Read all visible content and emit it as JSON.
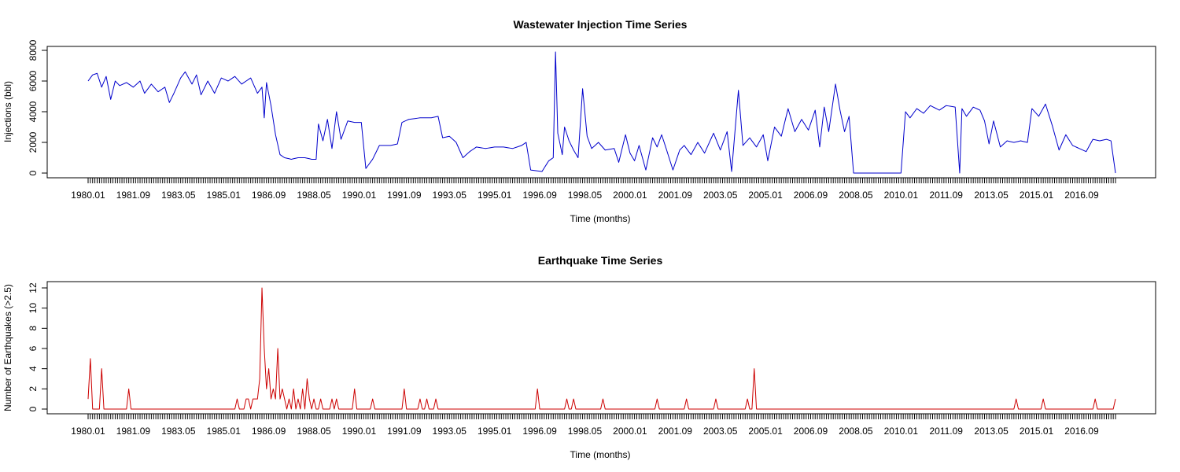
{
  "chart_data": [
    {
      "type": "line",
      "title": "Wastewater Injection Time Series",
      "xlabel": "Time (months)",
      "ylabel": "Injections (bbl)",
      "ylim": [
        0,
        8000
      ],
      "y_ticks": [
        0,
        2000,
        4000,
        6000,
        8000
      ],
      "x_tick_labels": [
        "1980.01",
        "1981.09",
        "1983.05",
        "1985.01",
        "1986.09",
        "1988.05",
        "1990.01",
        "1991.09",
        "1993.05",
        "1995.01",
        "1996.09",
        "1998.05",
        "2000.01",
        "2001.09",
        "2003.05",
        "2005.01",
        "2006.09",
        "2008.05",
        "2010.01",
        "2011.09",
        "2013.05",
        "2015.01",
        "2016.09"
      ],
      "grid": false,
      "color": "#0000cc",
      "x_start": "1980.01",
      "x_end": "2017.12",
      "series_keypoints": [
        [
          "1980.01",
          6000
        ],
        [
          "1980.03",
          6400
        ],
        [
          "1980.05",
          6500
        ],
        [
          "1980.07",
          5600
        ],
        [
          "1980.09",
          6300
        ],
        [
          "1980.11",
          4800
        ],
        [
          "1981.01",
          6000
        ],
        [
          "1981.03",
          5700
        ],
        [
          "1981.06",
          5900
        ],
        [
          "1981.09",
          5600
        ],
        [
          "1981.12",
          6000
        ],
        [
          "1982.02",
          5200
        ],
        [
          "1982.05",
          5800
        ],
        [
          "1982.08",
          5300
        ],
        [
          "1982.11",
          5600
        ],
        [
          "1983.01",
          4600
        ],
        [
          "1983.03",
          5200
        ],
        [
          "1983.06",
          6200
        ],
        [
          "1983.08",
          6600
        ],
        [
          "1983.11",
          5800
        ],
        [
          "1984.01",
          6400
        ],
        [
          "1984.03",
          5100
        ],
        [
          "1984.06",
          6000
        ],
        [
          "1984.09",
          5200
        ],
        [
          "1984.12",
          6200
        ],
        [
          "1985.03",
          6000
        ],
        [
          "1985.06",
          6300
        ],
        [
          "1985.09",
          5800
        ],
        [
          "1986.01",
          6200
        ],
        [
          "1986.04",
          5200
        ],
        [
          "1986.06",
          5600
        ],
        [
          "1986.07",
          3600
        ],
        [
          "1986.08",
          5900
        ],
        [
          "1986.10",
          4400
        ],
        [
          "1986.12",
          2500
        ],
        [
          "1987.02",
          1200
        ],
        [
          "1987.04",
          1000
        ],
        [
          "1987.07",
          900
        ],
        [
          "1987.10",
          1000
        ],
        [
          "1988.01",
          1000
        ],
        [
          "1988.04",
          900
        ],
        [
          "1988.06",
          900
        ],
        [
          "1988.07",
          3200
        ],
        [
          "1988.09",
          2100
        ],
        [
          "1988.11",
          3500
        ],
        [
          "1989.01",
          1600
        ],
        [
          "1989.03",
          4000
        ],
        [
          "1989.05",
          2200
        ],
        [
          "1989.08",
          3400
        ],
        [
          "1989.11",
          3300
        ],
        [
          "1990.02",
          3300
        ],
        [
          "1990.04",
          300
        ],
        [
          "1990.07",
          900
        ],
        [
          "1990.10",
          1800
        ],
        [
          "1991.03",
          1800
        ],
        [
          "1991.06",
          1900
        ],
        [
          "1991.08",
          3300
        ],
        [
          "1991.11",
          3500
        ],
        [
          "1992.04",
          3600
        ],
        [
          "1992.09",
          3600
        ],
        [
          "1992.12",
          3700
        ],
        [
          "1993.02",
          2300
        ],
        [
          "1993.05",
          2400
        ],
        [
          "1993.08",
          2000
        ],
        [
          "1993.11",
          1000
        ],
        [
          "1994.02",
          1400
        ],
        [
          "1994.05",
          1700
        ],
        [
          "1994.09",
          1600
        ],
        [
          "1995.01",
          1700
        ],
        [
          "1995.05",
          1700
        ],
        [
          "1995.09",
          1600
        ],
        [
          "1996.01",
          1800
        ],
        [
          "1996.03",
          2000
        ],
        [
          "1996.05",
          200
        ],
        [
          "1996.10",
          100
        ],
        [
          "1997.01",
          800
        ],
        [
          "1997.03",
          1000
        ],
        [
          "1997.04",
          7900
        ],
        [
          "1997.05",
          2600
        ],
        [
          "1997.07",
          1200
        ],
        [
          "1997.08",
          3000
        ],
        [
          "1997.10",
          2100
        ],
        [
          "1997.12",
          1500
        ],
        [
          "1998.02",
          1000
        ],
        [
          "1998.04",
          5500
        ],
        [
          "1998.06",
          2400
        ],
        [
          "1998.08",
          1600
        ],
        [
          "1998.11",
          2000
        ],
        [
          "1999.02",
          1500
        ],
        [
          "1999.06",
          1600
        ],
        [
          "1999.08",
          700
        ],
        [
          "1999.11",
          2500
        ],
        [
          "2000.01",
          1300
        ],
        [
          "2000.03",
          800
        ],
        [
          "2000.05",
          1800
        ],
        [
          "2000.08",
          200
        ],
        [
          "2000.11",
          2300
        ],
        [
          "2001.01",
          1700
        ],
        [
          "2001.03",
          2500
        ],
        [
          "2001.05",
          1600
        ],
        [
          "2001.08",
          200
        ],
        [
          "2001.11",
          1500
        ],
        [
          "2002.01",
          1800
        ],
        [
          "2002.04",
          1200
        ],
        [
          "2002.07",
          2000
        ],
        [
          "2002.10",
          1300
        ],
        [
          "2003.02",
          2600
        ],
        [
          "2003.05",
          1500
        ],
        [
          "2003.08",
          2700
        ],
        [
          "2003.10",
          100
        ],
        [
          "2004.01",
          5400
        ],
        [
          "2004.03",
          1800
        ],
        [
          "2004.06",
          2300
        ],
        [
          "2004.09",
          1700
        ],
        [
          "2004.12",
          2500
        ],
        [
          "2005.02",
          800
        ],
        [
          "2005.05",
          3000
        ],
        [
          "2005.08",
          2400
        ],
        [
          "2005.11",
          4200
        ],
        [
          "2006.02",
          2700
        ],
        [
          "2006.05",
          3500
        ],
        [
          "2006.08",
          2800
        ],
        [
          "2006.11",
          4100
        ],
        [
          "2007.01",
          1700
        ],
        [
          "2007.03",
          4300
        ],
        [
          "2007.05",
          2700
        ],
        [
          "2007.08",
          5800
        ],
        [
          "2007.10",
          4100
        ],
        [
          "2007.12",
          2700
        ],
        [
          "2008.02",
          3700
        ],
        [
          "2008.04",
          0
        ],
        [
          "2008.09",
          0
        ],
        [
          "2009.06",
          0
        ],
        [
          "2010.01",
          0
        ],
        [
          "2010.03",
          4000
        ],
        [
          "2010.05",
          3600
        ],
        [
          "2010.08",
          4200
        ],
        [
          "2010.11",
          3900
        ],
        [
          "2011.02",
          4400
        ],
        [
          "2011.06",
          4100
        ],
        [
          "2011.09",
          4400
        ],
        [
          "2012.01",
          4300
        ],
        [
          "2012.03",
          0
        ],
        [
          "2012.04",
          4200
        ],
        [
          "2012.06",
          3700
        ],
        [
          "2012.09",
          4300
        ],
        [
          "2012.12",
          4100
        ],
        [
          "2013.02",
          3400
        ],
        [
          "2013.04",
          1900
        ],
        [
          "2013.06",
          3400
        ],
        [
          "2013.09",
          1700
        ],
        [
          "2013.12",
          2100
        ],
        [
          "2014.03",
          2000
        ],
        [
          "2014.06",
          2100
        ],
        [
          "2014.09",
          2000
        ],
        [
          "2014.11",
          4200
        ],
        [
          "2015.02",
          3700
        ],
        [
          "2015.05",
          4500
        ],
        [
          "2015.08",
          3100
        ],
        [
          "2015.11",
          1500
        ],
        [
          "2016.02",
          2500
        ],
        [
          "2016.05",
          1800
        ],
        [
          "2016.08",
          1600
        ],
        [
          "2016.11",
          1400
        ],
        [
          "2017.02",
          2200
        ],
        [
          "2017.05",
          2100
        ],
        [
          "2017.08",
          2200
        ],
        [
          "2017.10",
          2100
        ],
        [
          "2017.12",
          0
        ]
      ]
    },
    {
      "type": "line",
      "title": "Earthquake Time Series",
      "xlabel": "Time (months)",
      "ylabel": "Number of Earthquakes (>2.5)",
      "ylim": [
        0,
        12
      ],
      "y_ticks": [
        0,
        2,
        4,
        6,
        8,
        10,
        12
      ],
      "x_tick_labels": [
        "1980.01",
        "1981.09",
        "1983.05",
        "1985.01",
        "1986.09",
        "1988.05",
        "1990.01",
        "1991.09",
        "1993.05",
        "1995.01",
        "1996.09",
        "1998.05",
        "2000.01",
        "2001.09",
        "2003.05",
        "2005.01",
        "2006.09",
        "2008.05",
        "2010.01",
        "2011.09",
        "2013.05",
        "2015.01",
        "2016.09"
      ],
      "grid": false,
      "color": "#cc0000",
      "x_start": "1980.01",
      "x_end": "2017.12",
      "events": [
        [
          "1980.01",
          1
        ],
        [
          "1980.02",
          5
        ],
        [
          "1980.07",
          4
        ],
        [
          "1981.07",
          2
        ],
        [
          "1985.07",
          1
        ],
        [
          "1985.11",
          1
        ],
        [
          "1985.12",
          1
        ],
        [
          "1986.02",
          1
        ],
        [
          "1986.03",
          1
        ],
        [
          "1986.04",
          1
        ],
        [
          "1986.05",
          3
        ],
        [
          "1986.06",
          12
        ],
        [
          "1986.07",
          6
        ],
        [
          "1986.08",
          2
        ],
        [
          "1986.09",
          4
        ],
        [
          "1986.10",
          1
        ],
        [
          "1986.11",
          2
        ],
        [
          "1986.12",
          1
        ],
        [
          "1987.01",
          6
        ],
        [
          "1987.02",
          1
        ],
        [
          "1987.03",
          2
        ],
        [
          "1987.04",
          1
        ],
        [
          "1987.06",
          1
        ],
        [
          "1987.08",
          2
        ],
        [
          "1987.10",
          1
        ],
        [
          "1987.12",
          2
        ],
        [
          "1988.02",
          3
        ],
        [
          "1988.03",
          1
        ],
        [
          "1988.05",
          1
        ],
        [
          "1988.08",
          1
        ],
        [
          "1989.01",
          1
        ],
        [
          "1989.03",
          1
        ],
        [
          "1989.11",
          2
        ],
        [
          "1990.07",
          1
        ],
        [
          "1991.09",
          2
        ],
        [
          "1992.04",
          1
        ],
        [
          "1992.07",
          1
        ],
        [
          "1992.11",
          1
        ],
        [
          "1996.08",
          2
        ],
        [
          "1997.09",
          1
        ],
        [
          "1997.12",
          1
        ],
        [
          "1999.01",
          1
        ],
        [
          "2001.01",
          1
        ],
        [
          "2002.02",
          1
        ],
        [
          "2003.03",
          1
        ],
        [
          "2004.05",
          1
        ],
        [
          "2004.08",
          4
        ],
        [
          "2014.04",
          1
        ],
        [
          "2015.04",
          1
        ],
        [
          "2017.03",
          1
        ],
        [
          "2017.12",
          1
        ]
      ]
    }
  ]
}
